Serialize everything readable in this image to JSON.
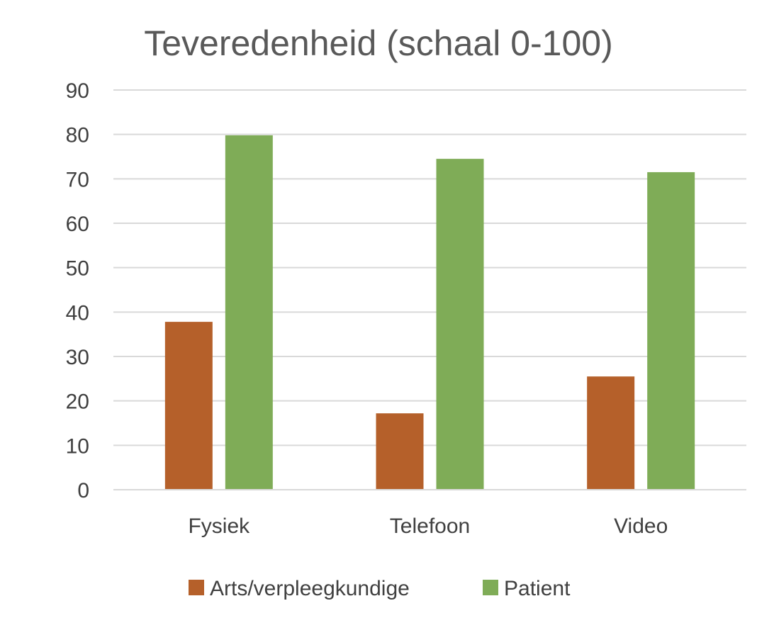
{
  "chart_data": {
    "type": "bar",
    "title": "Teveredenheid (schaal 0-100)",
    "categories": [
      "Fysiek",
      "Telefoon",
      "Video"
    ],
    "series": [
      {
        "name": "Arts/verpleegkundige",
        "values": [
          37.8,
          17.2,
          25.5
        ],
        "color": "#b5602a"
      },
      {
        "name": "Patient",
        "values": [
          79.8,
          74.5,
          71.5
        ],
        "color": "#7fac57"
      }
    ],
    "ylim": [
      0,
      90
    ],
    "yticks": [
      "0",
      "10",
      "20",
      "30",
      "40",
      "50",
      "60",
      "70",
      "80",
      "90"
    ],
    "grid": true,
    "legend": "bottom"
  }
}
